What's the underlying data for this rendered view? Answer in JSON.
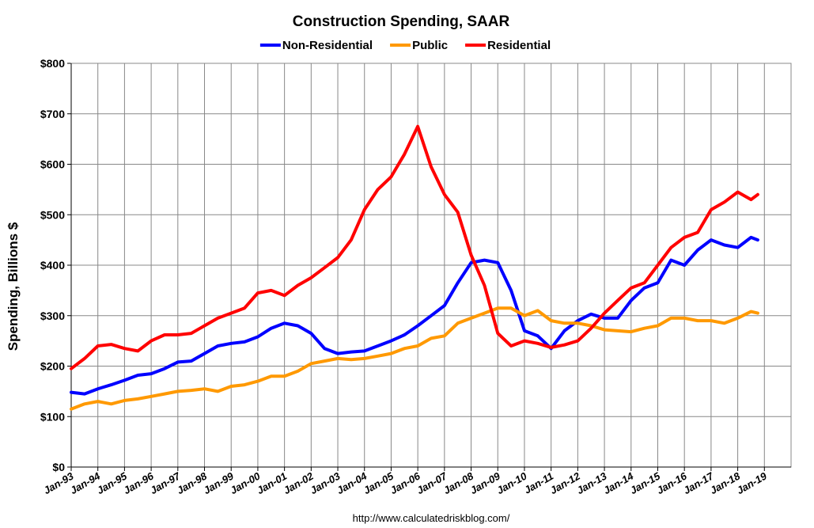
{
  "chart_data": {
    "type": "line",
    "title": "Construction Spending, SAAR",
    "y_label": "Spending, Billions $",
    "source": "http://www.calculatedriskblog.com/",
    "x": [
      "Jan-93",
      "Jul-93",
      "Jan-94",
      "Jul-94",
      "Jan-95",
      "Jul-95",
      "Jan-96",
      "Jul-96",
      "Jan-97",
      "Jul-97",
      "Jan-98",
      "Jul-98",
      "Jan-99",
      "Jul-99",
      "Jan-00",
      "Jul-00",
      "Jan-01",
      "Jul-01",
      "Jan-02",
      "Jul-02",
      "Jan-03",
      "Jul-03",
      "Jan-04",
      "Jul-04",
      "Jan-05",
      "Jul-05",
      "Jan-06",
      "Jul-06",
      "Jan-07",
      "Jul-07",
      "Jan-08",
      "Jul-08",
      "Jan-09",
      "Jul-09",
      "Jan-10",
      "Jul-10",
      "Jan-11",
      "Jul-11",
      "Jan-12",
      "Jul-12",
      "Jan-13",
      "Jul-13",
      "Jan-14",
      "Jul-14",
      "Jan-15",
      "Jul-15",
      "Jan-16",
      "Jul-16",
      "Jan-17",
      "Jul-17",
      "Jan-18",
      "Jul-18",
      "Oct-18"
    ],
    "series": [
      {
        "name": "Non-Residential",
        "color": "#0000ff",
        "values": [
          148,
          145,
          155,
          163,
          172,
          182,
          185,
          195,
          208,
          210,
          225,
          240,
          245,
          248,
          258,
          275,
          285,
          280,
          265,
          235,
          225,
          228,
          230,
          240,
          250,
          262,
          280,
          300,
          320,
          365,
          405,
          410,
          405,
          350,
          270,
          260,
          235,
          270,
          290,
          303,
          295,
          295,
          330,
          355,
          365,
          410,
          400,
          430,
          450,
          440,
          435,
          455,
          450
        ]
      },
      {
        "name": "Public",
        "color": "#ff9900",
        "values": [
          115,
          125,
          130,
          125,
          132,
          135,
          140,
          145,
          150,
          152,
          155,
          150,
          160,
          163,
          170,
          180,
          180,
          190,
          205,
          210,
          215,
          213,
          215,
          220,
          225,
          235,
          240,
          255,
          260,
          285,
          295,
          305,
          315,
          315,
          300,
          310,
          290,
          285,
          285,
          280,
          272,
          270,
          268,
          275,
          280,
          295,
          295,
          290,
          290,
          285,
          295,
          308,
          305
        ]
      },
      {
        "name": "Residential",
        "color": "#ff0000",
        "values": [
          195,
          215,
          240,
          243,
          235,
          230,
          250,
          262,
          262,
          265,
          280,
          295,
          305,
          315,
          345,
          350,
          340,
          360,
          375,
          395,
          415,
          450,
          510,
          550,
          575,
          620,
          675,
          595,
          540,
          505,
          420,
          360,
          265,
          240,
          250,
          245,
          237,
          242,
          250,
          275,
          305,
          330,
          355,
          365,
          400,
          435,
          455,
          465,
          510,
          525,
          545,
          530,
          540
        ]
      }
    ],
    "xlim": [
      "Jan-93",
      "Jan-20"
    ],
    "xticks": [
      "Jan-93",
      "Jan-94",
      "Jan-95",
      "Jan-96",
      "Jan-97",
      "Jan-98",
      "Jan-99",
      "Jan-00",
      "Jan-01",
      "Jan-02",
      "Jan-03",
      "Jan-04",
      "Jan-05",
      "Jan-06",
      "Jan-07",
      "Jan-08",
      "Jan-09",
      "Jan-10",
      "Jan-11",
      "Jan-12",
      "Jan-13",
      "Jan-14",
      "Jan-15",
      "Jan-16",
      "Jan-17",
      "Jan-18",
      "Jan-19"
    ],
    "ylim": [
      0,
      800
    ],
    "yticks": [
      {
        "value": 0,
        "label": "$0"
      },
      {
        "value": 100,
        "label": "$100"
      },
      {
        "value": 200,
        "label": "$200"
      },
      {
        "value": 300,
        "label": "$300"
      },
      {
        "value": 400,
        "label": "$400"
      },
      {
        "value": 500,
        "label": "$500"
      },
      {
        "value": 600,
        "label": "$600"
      },
      {
        "value": 700,
        "label": "$700"
      },
      {
        "value": 800,
        "label": "$800"
      }
    ],
    "grid": true,
    "legend": "top"
  }
}
